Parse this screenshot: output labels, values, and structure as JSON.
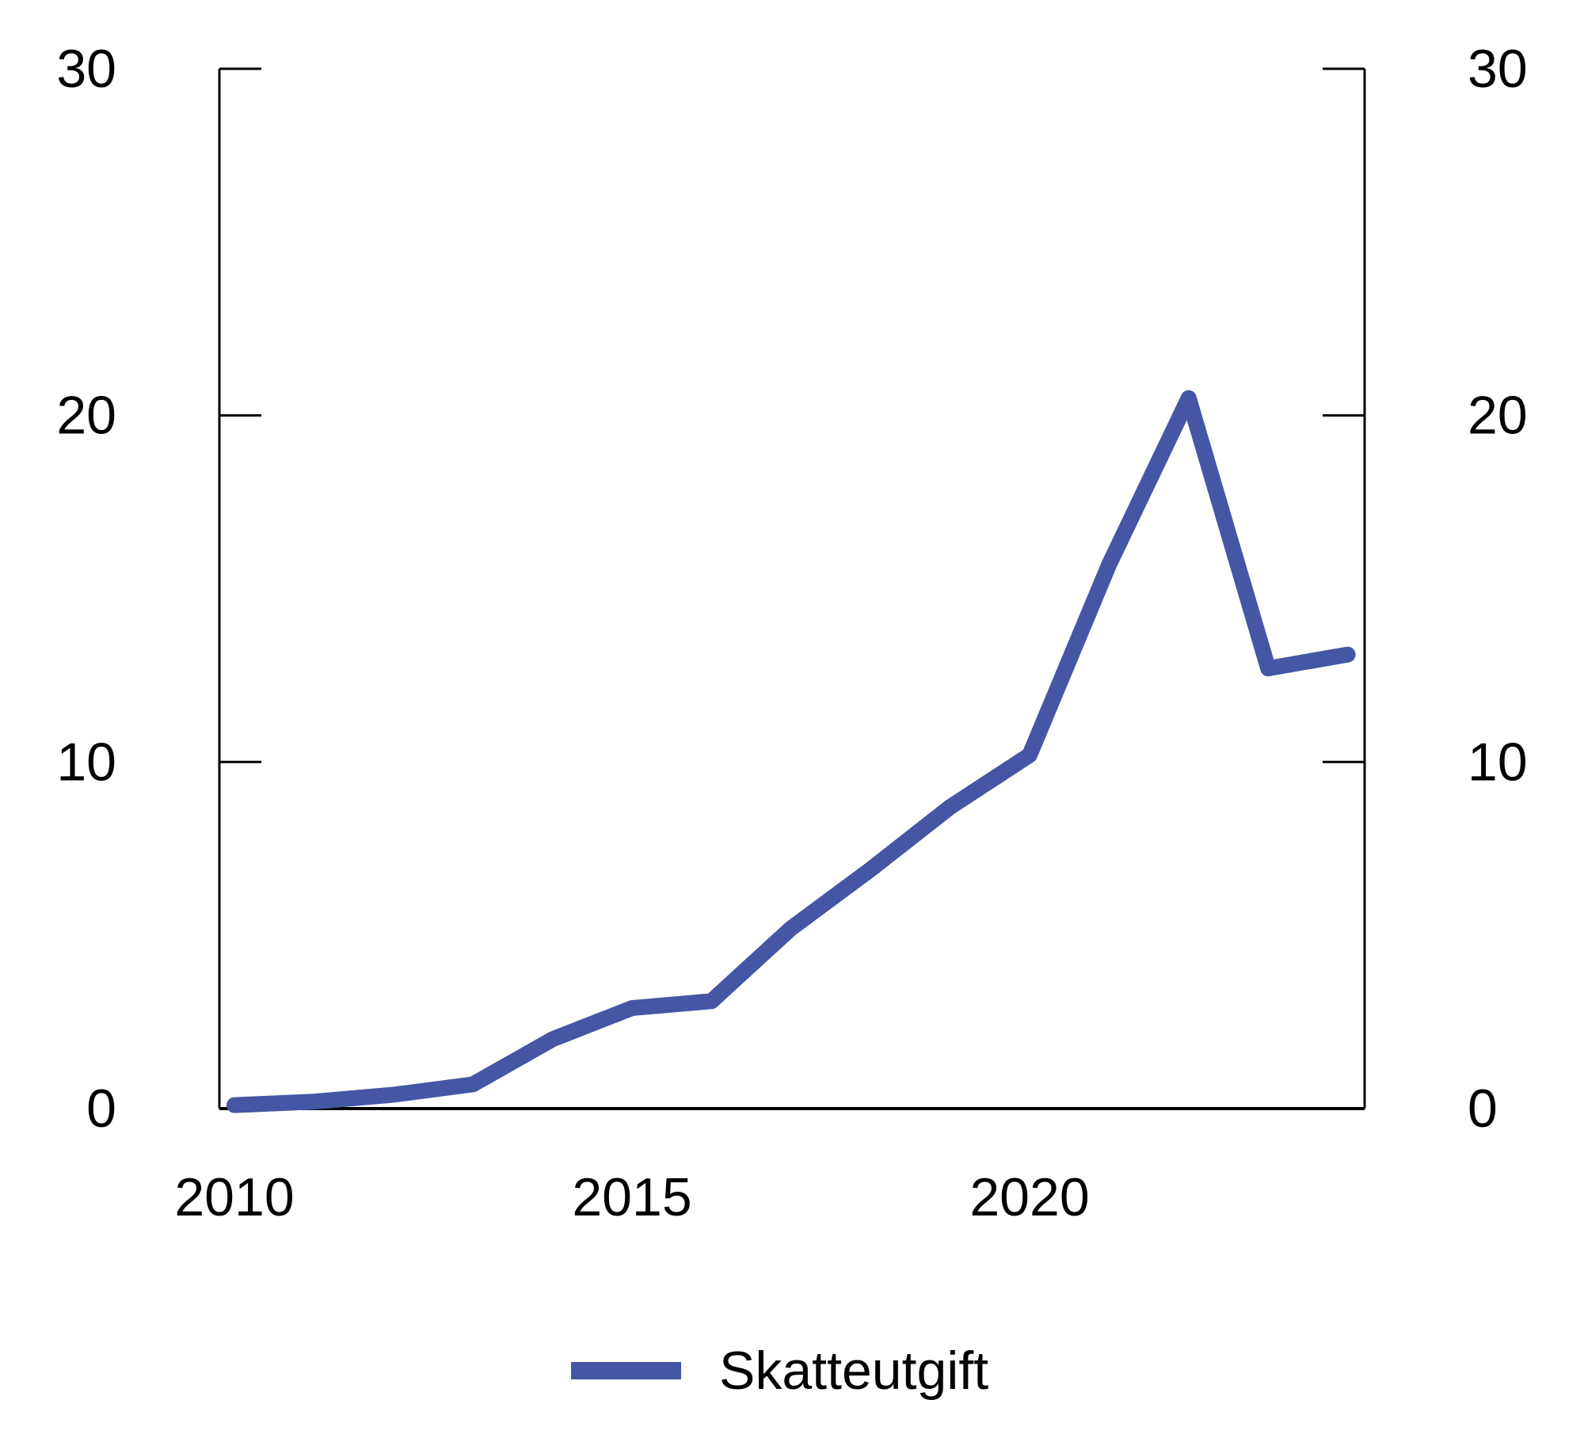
{
  "chart_data": {
    "type": "line",
    "title": "",
    "xlabel": "",
    "ylabel": "",
    "x": [
      2010,
      2011,
      2012,
      2013,
      2014,
      2015,
      2016,
      2017,
      2018,
      2019,
      2020,
      2021,
      2022,
      2023,
      2024
    ],
    "series": [
      {
        "name": "Skatteutgift",
        "color": "#4456a4",
        "values": [
          0.1,
          0.2,
          0.4,
          0.7,
          2.0,
          2.9,
          3.1,
          5.2,
          6.9,
          8.7,
          10.2,
          15.7,
          20.5,
          12.7,
          13.1
        ]
      }
    ],
    "x_tick_years": [
      2010,
      2015,
      2020
    ],
    "x_tick_labels": [
      "2010",
      "2015",
      "2020"
    ],
    "y_tick_values": [
      0,
      10,
      20,
      30
    ],
    "y_tick_labels": [
      "0",
      "10",
      "20",
      "30"
    ],
    "y_axis_sides": [
      "left",
      "right"
    ],
    "ylim": [
      0,
      30
    ],
    "xlim": [
      2010,
      2024
    ],
    "grid": false,
    "legend_position": "bottom-center",
    "axis_color": "#000000",
    "background_color": "#ffffff"
  },
  "legend": {
    "label": "Skatteutgift",
    "swatch_color": "#4456a4"
  }
}
